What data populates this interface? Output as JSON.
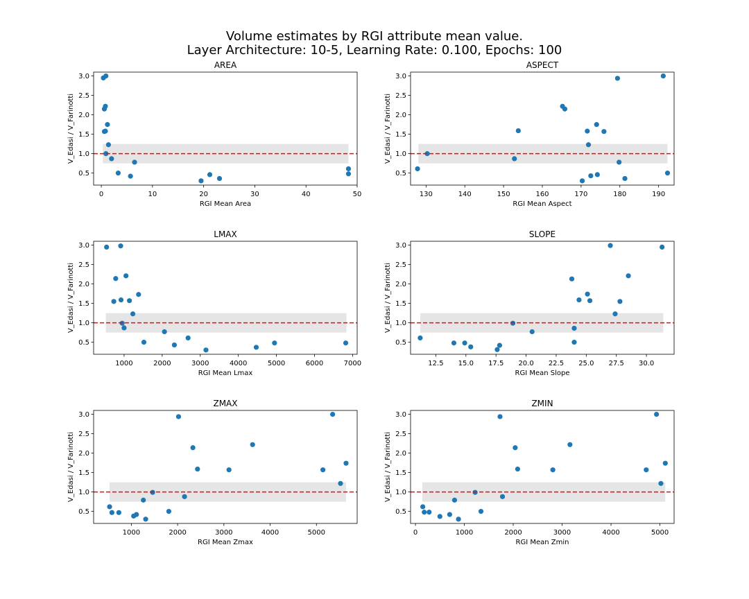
{
  "figure": {
    "title_line1": "Volume estimates by RGI attribute mean value.",
    "title_line2": "Layer Architecture: 10-5, Learning Rate: 0.100, Epochs: 100"
  },
  "colors": {
    "points": "#1f77b4",
    "reference_line": "#ff0000",
    "band": "#e5e5e5"
  },
  "chart_data": [
    {
      "type": "scatter",
      "title": "AREA",
      "xlabel": "RGI Mean Area",
      "ylabel": "V_Edasi / V_Farinotti",
      "xlim": [
        -1.5,
        50.0
      ],
      "ylim": [
        0.19,
        3.1
      ],
      "xticks": [
        0,
        10,
        20,
        30,
        40,
        50
      ],
      "xtick_labels": [
        "0",
        "10",
        "20",
        "30",
        "40",
        "50"
      ],
      "yticks": [
        0.5,
        1.0,
        1.5,
        2.0,
        2.5,
        3.0
      ],
      "ytick_labels": [
        "0.5",
        "1.0",
        "1.5",
        "2.0",
        "2.5",
        "3.0"
      ],
      "reference_y": 1.0,
      "band": [
        0.75,
        1.25
      ],
      "band_x": [
        0.3,
        48.3
      ],
      "x": [
        0.4,
        0.9,
        0.6,
        0.8,
        1.2,
        0.8,
        0.6,
        1.4,
        0.9,
        2.0,
        3.3,
        6.5,
        5.7,
        19.5,
        21.2,
        23.1,
        48.3,
        48.3
      ],
      "y": [
        2.95,
        3.0,
        2.15,
        2.22,
        1.75,
        1.58,
        1.57,
        1.23,
        1.0,
        0.87,
        0.5,
        0.78,
        0.42,
        0.3,
        0.46,
        0.36,
        0.61,
        0.48
      ]
    },
    {
      "type": "scatter",
      "title": "ASPECT",
      "xlabel": "RGI Mean Aspect",
      "ylabel": "V_Edasi / V_Farinotti",
      "xlim": [
        126.0,
        194.0
      ],
      "ylim": [
        0.19,
        3.1
      ],
      "xticks": [
        130,
        140,
        150,
        160,
        170,
        180,
        190
      ],
      "xtick_labels": [
        "130",
        "140",
        "150",
        "160",
        "170",
        "180",
        "190"
      ],
      "yticks": [
        0.5,
        1.0,
        1.5,
        2.0,
        2.5,
        3.0
      ],
      "ytick_labels": [
        "0.5",
        "1.0",
        "1.5",
        "2.0",
        "2.5",
        "3.0"
      ],
      "reference_y": 1.0,
      "band": [
        0.75,
        1.25
      ],
      "band_x": [
        128.0,
        192.3
      ],
      "x": [
        191.2,
        179.4,
        165.2,
        165.8,
        174.0,
        153.8,
        171.6,
        175.9,
        171.9,
        130.3,
        152.8,
        179.8,
        127.8,
        192.3,
        172.5,
        174.2,
        181.3,
        170.3
      ],
      "y": [
        3.0,
        2.94,
        2.22,
        2.15,
        1.75,
        1.59,
        1.58,
        1.57,
        1.23,
        1.0,
        0.87,
        0.78,
        0.61,
        0.5,
        0.43,
        0.46,
        0.36,
        0.3
      ]
    },
    {
      "type": "scatter",
      "title": "LMAX",
      "xlabel": "RGI Mean Lmax",
      "ylabel": "V_Edasi / V_Farinotti",
      "xlim": [
        200.0,
        7120.0
      ],
      "ylim": [
        0.19,
        3.1
      ],
      "xticks": [
        1000,
        2000,
        3000,
        4000,
        5000,
        6000,
        7000
      ],
      "xtick_labels": [
        "1000",
        "2000",
        "3000",
        "4000",
        "5000",
        "6000",
        "7000"
      ],
      "yticks": [
        0.5,
        1.0,
        1.5,
        2.0,
        2.5,
        3.0
      ],
      "ytick_labels": [
        "0.5",
        "1.0",
        "1.5",
        "2.0",
        "2.5",
        "3.0"
      ],
      "reference_y": 1.0,
      "band": [
        0.75,
        1.25
      ],
      "band_x": [
        520.0,
        6840.0
      ],
      "x": [
        540,
        910,
        1050,
        780,
        1380,
        1140,
        920,
        730,
        1230,
        950,
        1000,
        2060,
        1520,
        2680,
        3150,
        2320,
        4470,
        4950,
        6820
      ],
      "y": [
        2.95,
        2.98,
        2.21,
        2.14,
        1.73,
        1.57,
        1.59,
        1.55,
        1.23,
        0.99,
        0.87,
        0.77,
        0.5,
        0.61,
        0.3,
        0.43,
        0.37,
        0.48,
        0.48
      ]
    },
    {
      "type": "scatter",
      "title": "SLOPE",
      "xlabel": "RGI Mean Slope",
      "ylabel": "V_Edasi / V_Farinotti",
      "xlim": [
        10.4,
        32.3
      ],
      "ylim": [
        0.19,
        3.1
      ],
      "xticks": [
        12.5,
        15.0,
        17.5,
        20.0,
        22.5,
        25.0,
        27.5,
        30.0
      ],
      "xtick_labels": [
        "12.5",
        "15.0",
        "17.5",
        "20.0",
        "22.5",
        "25.0",
        "27.5",
        "30.0"
      ],
      "yticks": [
        0.5,
        1.0,
        1.5,
        2.0,
        2.5,
        3.0
      ],
      "ytick_labels": [
        "0.5",
        "1.0",
        "1.5",
        "2.0",
        "2.5",
        "3.0"
      ],
      "reference_y": 1.0,
      "band": [
        0.75,
        1.25
      ],
      "band_x": [
        11.2,
        31.4
      ],
      "x": [
        27.0,
        31.3,
        28.5,
        23.8,
        25.1,
        24.4,
        25.3,
        27.8,
        27.4,
        18.9,
        24.0,
        20.5,
        11.2,
        24.0,
        14.0,
        14.9,
        15.4,
        17.8,
        17.6
      ],
      "y": [
        2.99,
        2.95,
        2.21,
        2.13,
        1.74,
        1.59,
        1.57,
        1.55,
        1.23,
        0.99,
        0.86,
        0.77,
        0.61,
        0.5,
        0.48,
        0.48,
        0.38,
        0.42,
        0.31
      ]
    },
    {
      "type": "scatter",
      "title": "ZMAX",
      "xlabel": "RGI Mean Zmax",
      "ylabel": "V_Edasi / V_Farinotti",
      "xlim": [
        185.0,
        5880.0
      ],
      "ylim": [
        0.19,
        3.1
      ],
      "xticks": [
        1000,
        2000,
        3000,
        4000,
        5000
      ],
      "xtick_labels": [
        "1000",
        "2000",
        "3000",
        "4000",
        "5000"
      ],
      "yticks": [
        0.5,
        1.0,
        1.5,
        2.0,
        2.5,
        3.0
      ],
      "ytick_labels": [
        "0.5",
        "1.0",
        "1.5",
        "2.0",
        "2.5",
        "3.0"
      ],
      "reference_y": 1.0,
      "band": [
        0.75,
        1.25
      ],
      "band_x": [
        530.0,
        5640.0
      ],
      "x": [
        5350,
        2020,
        3620,
        2330,
        5640,
        2430,
        3110,
        5140,
        5520,
        1460,
        2150,
        1260,
        530,
        1810,
        580,
        730,
        1050,
        1110,
        1310
      ],
      "y": [
        3.0,
        2.94,
        2.22,
        2.14,
        1.74,
        1.59,
        1.57,
        1.57,
        1.22,
        0.99,
        0.88,
        0.79,
        0.62,
        0.5,
        0.47,
        0.47,
        0.38,
        0.42,
        0.3
      ]
    },
    {
      "type": "scatter",
      "title": "ZMIN",
      "xlabel": "RGI Mean Zmin",
      "ylabel": "V_Edasi / V_Farinotti",
      "xlim": [
        -100.0,
        5290.0
      ],
      "ylim": [
        0.19,
        3.1
      ],
      "xticks": [
        0,
        1000,
        2000,
        3000,
        4000,
        5000
      ],
      "xtick_labels": [
        "0",
        "1000",
        "2000",
        "3000",
        "4000",
        "5000"
      ],
      "yticks": [
        0.5,
        1.0,
        1.5,
        2.0,
        2.5,
        3.0
      ],
      "ytick_labels": [
        "0.5",
        "1.0",
        "1.5",
        "2.0",
        "2.5",
        "3.0"
      ],
      "reference_y": 1.0,
      "band": [
        0.75,
        1.25
      ],
      "band_x": [
        140.0,
        5110.0
      ],
      "x": [
        4930,
        1730,
        3160,
        2040,
        5110,
        2090,
        2810,
        4720,
        5020,
        1220,
        1780,
        800,
        150,
        1340,
        180,
        280,
        500,
        700,
        880
      ],
      "y": [
        3.0,
        2.94,
        2.22,
        2.14,
        1.74,
        1.59,
        1.57,
        1.57,
        1.22,
        0.99,
        0.88,
        0.79,
        0.62,
        0.5,
        0.48,
        0.48,
        0.37,
        0.42,
        0.3
      ]
    }
  ]
}
